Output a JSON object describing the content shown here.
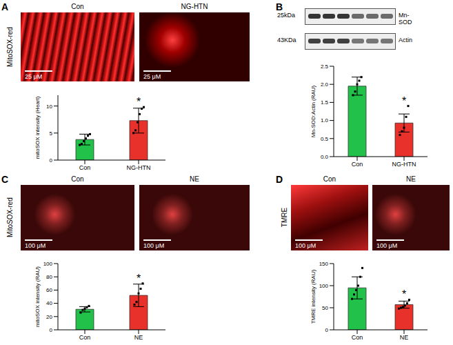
{
  "chart_data": [
    {
      "panel": "A",
      "type": "bar",
      "image_label": "MitoSOX-red",
      "images": [
        {
          "label": "Con",
          "scale_bar": "25 μM"
        },
        {
          "label": "NG-HTN",
          "scale_bar": "25 μM"
        }
      ],
      "y_label": "mitoSOX intensity (Heart)",
      "categories": [
        "Con",
        "NG-HTN"
      ],
      "values": [
        3.8,
        7.3
      ],
      "errors": [
        1.0,
        2.3
      ],
      "points": [
        [
          2.8,
          3.0,
          3.5,
          4.0,
          4.5,
          4.8
        ],
        [
          5.0,
          5.5,
          7.0,
          8.5,
          9.5,
          9.8
        ]
      ],
      "colors": [
        "#22c24a",
        "#e8312a"
      ],
      "ylim": [
        0,
        12
      ],
      "yticks": [
        0,
        5,
        10
      ],
      "annotations": [
        {
          "text": "*",
          "category": "NG-HTN"
        }
      ]
    },
    {
      "panel": "B",
      "type": "bar",
      "blot": {
        "left_labels": [
          "25kDa",
          "43KDa"
        ],
        "right_labels": [
          "Mn-SOD",
          "Actin"
        ]
      },
      "y_label": "Mn-SOD:Actin (RAU)",
      "categories": [
        "Con",
        "NG-HTN"
      ],
      "values": [
        1.95,
        0.93
      ],
      "errors": [
        0.25,
        0.25
      ],
      "points": [
        [
          1.7,
          1.8,
          2.0,
          2.1,
          2.2
        ],
        [
          0.6,
          0.7,
          0.8,
          1.1,
          1.4
        ]
      ],
      "colors": [
        "#22c24a",
        "#e8312a"
      ],
      "ylim": [
        0,
        2.5
      ],
      "yticks": [
        {
          "value": 0,
          "label": "0.0"
        },
        {
          "value": 0.5,
          "label": "0.5"
        },
        {
          "value": 1,
          "label": "1.0"
        },
        {
          "value": 1.5,
          "label": "1.5"
        },
        {
          "value": 2,
          "label": "2.0"
        },
        {
          "value": 2.5,
          "label": "2.5"
        }
      ],
      "annotations": [
        {
          "text": "*",
          "category": "NG-HTN"
        }
      ]
    },
    {
      "panel": "C",
      "type": "bar",
      "image_label": "MitoSOX-red",
      "images": [
        {
          "label": "Con",
          "scale_bar": "100 μM"
        },
        {
          "label": "NE",
          "scale_bar": "100 μM"
        }
      ],
      "y_label": "mitoSOX intensity (RAU)",
      "categories": [
        "Con",
        "NE"
      ],
      "values": [
        31,
        52
      ],
      "errors": [
        4,
        17
      ],
      "points": [
        [
          26,
          30,
          32,
          34,
          36
        ],
        [
          38,
          42,
          55,
          62,
          70
        ]
      ],
      "colors": [
        "#22c24a",
        "#e8312a"
      ],
      "ylim": [
        0,
        100
      ],
      "yticks": [
        0,
        20,
        40,
        60,
        80,
        100
      ],
      "annotations": [
        {
          "text": "*",
          "category": "NE"
        }
      ]
    },
    {
      "panel": "D",
      "type": "bar",
      "image_label": "TMRE",
      "images": [
        {
          "label": "Con",
          "scale_bar": "100 μM"
        },
        {
          "label": "NE",
          "scale_bar": "100 μM"
        }
      ],
      "y_label": "TMRE intensity (RAU)",
      "categories": [
        "Con",
        "NE"
      ],
      "values": [
        95,
        57
      ],
      "errors": [
        25,
        8
      ],
      "points": [
        [
          70,
          80,
          90,
          100,
          120,
          140
        ],
        [
          48,
          50,
          52,
          55,
          60,
          68
        ]
      ],
      "colors": [
        "#22c24a",
        "#e8312a"
      ],
      "ylim": [
        0,
        150
      ],
      "yticks": [
        0,
        50,
        100,
        150
      ],
      "annotations": [
        {
          "text": "*",
          "category": "NE"
        }
      ]
    }
  ]
}
